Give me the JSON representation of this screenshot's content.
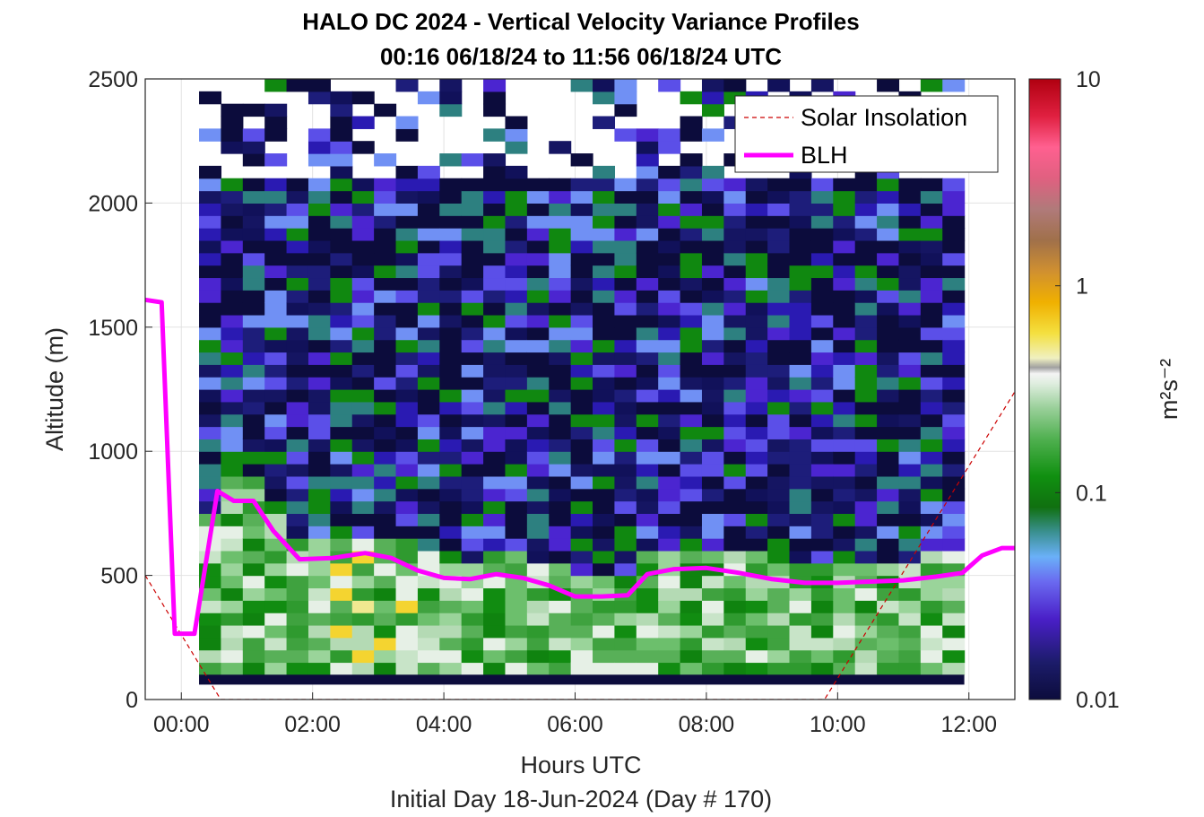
{
  "chart_data": {
    "type": "heatmap",
    "title_line1": "HALO DC 2024 - Vertical Velocity Variance Profiles",
    "title_line2": "00:16 06/18/24 to 11:56 06/18/24  UTC",
    "xlabel": "Hours UTC",
    "xlabel2": "Initial Day 18-Jun-2024 (Day # 170)",
    "ylabel": "Altitude (m)",
    "colorbar_label": "m²s⁻²",
    "colorbar_scale": "log",
    "colorbar_range": [
      0.01,
      10
    ],
    "colorbar_ticks": [
      "0.01",
      "0.1",
      "1",
      "10"
    ],
    "xlim_hours": [
      -0.55,
      12.7
    ],
    "ylim": [
      0,
      2500
    ],
    "x_ticks": [
      {
        "hour": 0,
        "label": "00:00"
      },
      {
        "hour": 2,
        "label": "02:00"
      },
      {
        "hour": 4,
        "label": "04:00"
      },
      {
        "hour": 6,
        "label": "06:00"
      },
      {
        "hour": 8,
        "label": "08:00"
      },
      {
        "hour": 10,
        "label": "10:00"
      },
      {
        "hour": 12,
        "label": "12:00"
      }
    ],
    "y_ticks": [
      0,
      500,
      1000,
      1500,
      2000,
      2500
    ],
    "grid": true,
    "legend_position": "top-right",
    "legend": [
      {
        "name": "Solar Insolation",
        "color": "#cc0000",
        "style": "dashed"
      },
      {
        "name": "BLH",
        "color": "#ff00ff",
        "style": "solid"
      }
    ],
    "time_start_hour": 0.27,
    "time_end_hour": 11.93,
    "gate_bottom_m": 100,
    "gate_top_m": 2500,
    "blh_series": {
      "name": "BLH",
      "x_hours": [
        -0.55,
        -0.3,
        -0.1,
        0.2,
        0.55,
        0.8,
        1.1,
        1.4,
        1.8,
        2.3,
        2.8,
        3.2,
        3.6,
        4.0,
        4.4,
        4.8,
        5.2,
        5.6,
        6.0,
        6.4,
        6.8,
        7.1,
        7.5,
        8.0,
        8.5,
        9.0,
        9.5,
        10.0,
        10.5,
        11.0,
        11.5,
        11.9,
        12.2,
        12.5,
        12.7
      ],
      "y_m": [
        1610,
        1600,
        265,
        265,
        840,
        800,
        800,
        680,
        565,
        570,
        590,
        570,
        520,
        490,
        485,
        505,
        490,
        460,
        415,
        415,
        420,
        505,
        525,
        530,
        510,
        485,
        470,
        470,
        475,
        480,
        495,
        510,
        580,
        610,
        610
      ]
    },
    "solar_insolation_series": {
      "name": "Solar Insolation",
      "x_hours": [
        -0.55,
        0.6,
        9.8,
        12.7
      ],
      "y_m": [
        500,
        0,
        0,
        1240
      ]
    },
    "variance_m2s2": []
  }
}
